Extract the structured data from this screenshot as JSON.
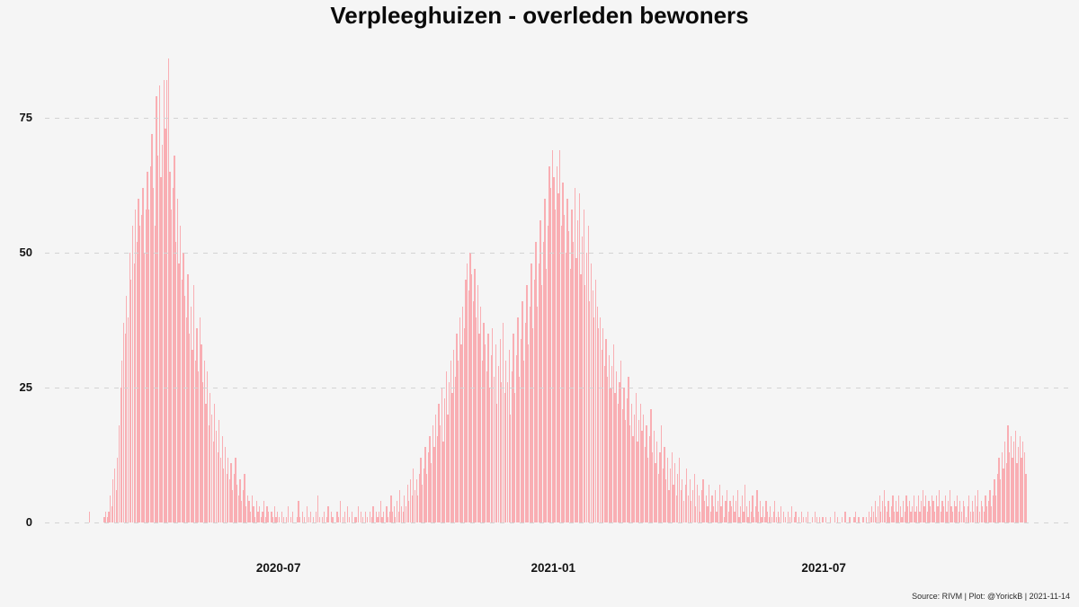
{
  "title": "Verpleeghuizen - overleden bewoners",
  "footer": "Source: RIVM | Plot: @YorickB |  2021-11-14",
  "colors": {
    "background": "#f5f5f5",
    "bar": "#f9aeb3",
    "gridline": "#d3d3d3",
    "text": "#141414"
  },
  "chart_data": {
    "type": "bar",
    "title": "Verpleeghuizen - overleden bewoners",
    "xlabel": "",
    "ylabel": "",
    "ylim": [
      0,
      87
    ],
    "grid": "dashed-horizontal",
    "legend": "none",
    "start_date": "2020-02-24",
    "end_date": "2021-11-13",
    "yticks": [
      0,
      25,
      50,
      75
    ],
    "xticks": [
      {
        "label": "2020-07",
        "day_index": 128
      },
      {
        "label": "2021-01",
        "day_index": 312
      },
      {
        "label": "2021-07",
        "day_index": 493
      }
    ],
    "values": [
      0,
      2,
      0,
      0,
      0,
      0,
      0,
      0,
      0,
      0,
      0,
      1,
      2,
      1,
      2,
      5,
      3,
      8,
      10,
      6,
      12,
      18,
      25,
      30,
      37,
      35,
      42,
      38,
      50,
      45,
      55,
      48,
      58,
      52,
      60,
      55,
      57,
      62,
      50,
      58,
      65,
      58,
      66,
      72,
      62,
      55,
      79,
      68,
      81,
      64,
      70,
      82,
      73,
      82,
      86,
      65,
      58,
      62,
      68,
      52,
      60,
      48,
      55,
      45,
      50,
      42,
      38,
      46,
      35,
      40,
      32,
      44,
      30,
      36,
      28,
      38,
      33,
      26,
      30,
      22,
      28,
      18,
      24,
      20,
      15,
      22,
      17,
      13,
      19,
      12,
      16,
      10,
      14,
      9,
      12,
      8,
      11,
      6,
      9,
      12,
      7,
      5,
      8,
      4,
      6,
      9,
      3,
      5,
      4,
      2,
      5,
      3,
      1,
      4,
      2,
      3,
      1,
      2,
      4,
      1,
      3,
      2,
      0,
      2,
      1,
      3,
      1,
      2,
      1,
      0,
      2,
      1,
      0,
      1,
      3,
      0,
      1,
      2,
      0,
      0,
      1,
      4,
      1,
      0,
      2,
      1,
      0,
      3,
      1,
      2,
      0,
      1,
      0,
      2,
      5,
      1,
      0,
      1,
      2,
      0,
      1,
      3,
      0,
      2,
      1,
      0,
      0,
      2,
      1,
      4,
      0,
      1,
      2,
      0,
      3,
      1,
      0,
      2,
      0,
      1,
      1,
      3,
      0,
      2,
      1,
      0,
      2,
      1,
      0,
      2,
      1,
      3,
      0,
      2,
      1,
      2,
      4,
      1,
      2,
      0,
      3,
      1,
      2,
      5,
      2,
      3,
      1,
      4,
      2,
      6,
      3,
      2,
      5,
      3,
      7,
      4,
      8,
      5,
      10,
      6,
      8,
      5,
      9,
      12,
      7,
      10,
      14,
      9,
      13,
      16,
      11,
      18,
      14,
      20,
      16,
      22,
      18,
      25,
      15,
      23,
      28,
      20,
      26,
      30,
      24,
      32,
      27,
      35,
      30,
      38,
      33,
      40,
      36,
      45,
      48,
      43,
      50,
      46,
      41,
      47,
      38,
      44,
      35,
      40,
      30,
      37,
      33,
      28,
      35,
      25,
      31,
      36,
      27,
      33,
      22,
      29,
      34,
      26,
      37,
      24,
      30,
      26,
      32,
      20,
      28,
      35,
      24,
      31,
      38,
      27,
      34,
      41,
      30,
      37,
      44,
      33,
      40,
      48,
      36,
      45,
      52,
      40,
      48,
      56,
      44,
      52,
      60,
      47,
      55,
      66,
      62,
      69,
      64,
      58,
      66,
      61,
      69,
      55,
      63,
      57,
      50,
      60,
      54,
      47,
      58,
      52,
      62,
      49,
      56,
      61,
      46,
      53,
      58,
      44,
      50,
      55,
      41,
      48,
      43,
      38,
      45,
      40,
      36,
      38,
      32,
      36,
      29,
      34,
      27,
      31,
      25,
      29,
      33,
      24,
      28,
      22,
      26,
      30,
      21,
      25,
      19,
      23,
      27,
      18,
      22,
      16,
      20,
      24,
      15,
      19,
      22,
      17,
      20,
      14,
      18,
      12,
      16,
      21,
      13,
      17,
      11,
      15,
      9,
      13,
      18,
      10,
      14,
      8,
      12,
      6,
      10,
      13,
      7,
      11,
      5,
      9,
      12,
      6,
      8,
      4,
      7,
      10,
      5,
      8,
      4,
      6,
      9,
      3,
      7,
      5,
      2,
      6,
      8,
      4,
      5,
      3,
      7,
      2,
      5,
      3,
      6,
      2,
      4,
      7,
      3,
      5,
      1,
      4,
      6,
      2,
      4,
      3,
      5,
      2,
      4,
      6,
      1,
      3,
      5,
      2,
      7,
      3,
      1,
      4,
      2,
      5,
      1,
      3,
      6,
      2,
      4,
      1,
      3,
      1,
      4,
      2,
      1,
      3,
      1,
      2,
      4,
      1,
      2,
      1,
      3,
      0,
      2,
      1,
      0,
      2,
      1,
      3,
      0,
      1,
      2,
      0,
      1,
      0,
      2,
      1,
      0,
      1,
      2,
      0,
      0,
      1,
      0,
      2,
      1,
      0,
      1,
      0,
      1,
      0,
      1,
      0,
      0,
      1,
      0,
      0,
      2,
      0,
      1,
      0,
      0,
      1,
      0,
      2,
      0,
      0,
      1,
      0,
      0,
      1,
      2,
      0,
      1,
      0,
      0,
      1,
      0,
      1,
      0,
      2,
      1,
      3,
      2,
      4,
      1,
      3,
      5,
      2,
      4,
      6,
      3,
      2,
      4,
      1,
      3,
      5,
      2,
      4,
      2,
      5,
      3,
      1,
      4,
      2,
      5,
      3,
      4,
      2,
      3,
      5,
      2,
      3,
      5,
      2,
      4,
      6,
      3,
      5,
      2,
      4,
      3,
      5,
      4,
      2,
      5,
      3,
      6,
      2,
      4,
      3,
      5,
      2,
      4,
      6,
      3,
      2,
      4,
      3,
      5,
      2,
      4,
      2,
      4,
      3,
      1,
      3,
      5,
      2,
      4,
      2,
      5,
      3,
      6,
      2,
      4,
      3,
      2,
      5,
      3,
      4,
      6,
      3,
      5,
      8,
      5,
      9,
      12,
      8,
      13,
      10,
      15,
      11,
      18,
      13,
      16,
      12,
      15,
      17,
      11,
      14,
      16,
      12,
      15,
      13,
      9
    ]
  }
}
